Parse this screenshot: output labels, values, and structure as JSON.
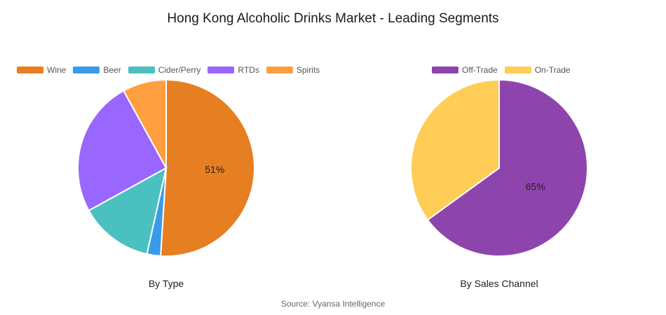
{
  "title": "Hong Kong Alcoholic Drinks Market - Leading Segments",
  "source": "Source: Vyansa Intelligence",
  "chart_data": [
    {
      "type": "pie",
      "subtitle": "By Type",
      "legend_position": "top-left",
      "labels": [
        "Wine",
        "Beer",
        "Cider/Perry",
        "RTDs",
        "Spirits"
      ],
      "values": [
        51,
        2.5,
        13.5,
        25,
        8
      ],
      "colors": [
        "#E67E22",
        "#3A9BE8",
        "#4BC0C0",
        "#9966FF",
        "#FF9F40"
      ],
      "data_labels": [
        "51%",
        "",
        "",
        "",
        ""
      ]
    },
    {
      "type": "pie",
      "subtitle": "By Sales Channel",
      "legend_position": "top-center",
      "labels": [
        "Off-Trade",
        "On-Trade"
      ],
      "values": [
        65,
        35
      ],
      "colors": [
        "#8E44AD",
        "#FFCD56"
      ],
      "data_labels": [
        "65%",
        ""
      ]
    }
  ]
}
